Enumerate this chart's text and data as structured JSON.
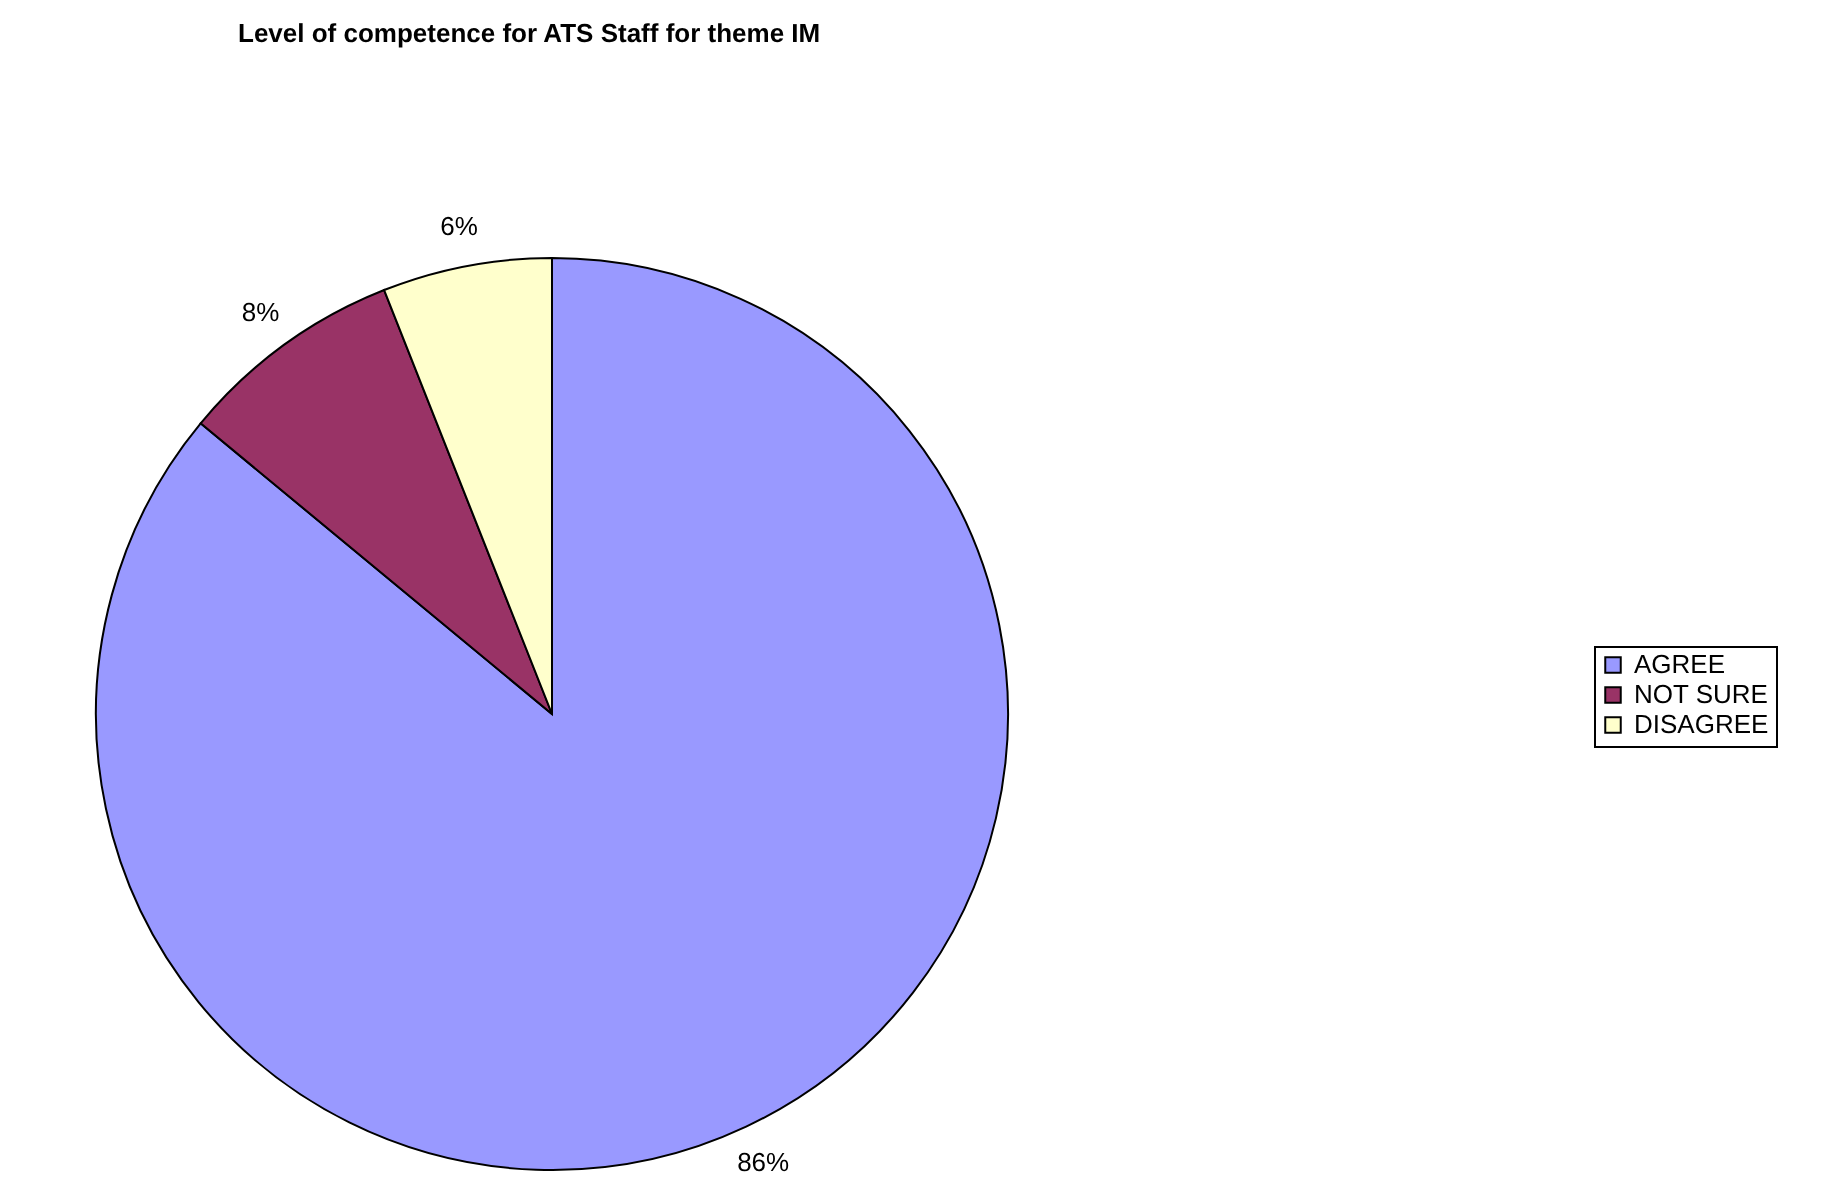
{
  "chart_data": {
    "type": "pie",
    "title": "Level of competence for ATS Staff for theme IM",
    "categories": [
      "AGREE",
      "NOT SURE",
      "DISAGREE"
    ],
    "values": [
      86,
      8,
      6
    ],
    "colors": [
      "#9999ff",
      "#993366",
      "#ffffcc"
    ],
    "value_labels": [
      "86%",
      "8%",
      "6%"
    ],
    "legend": "right"
  }
}
